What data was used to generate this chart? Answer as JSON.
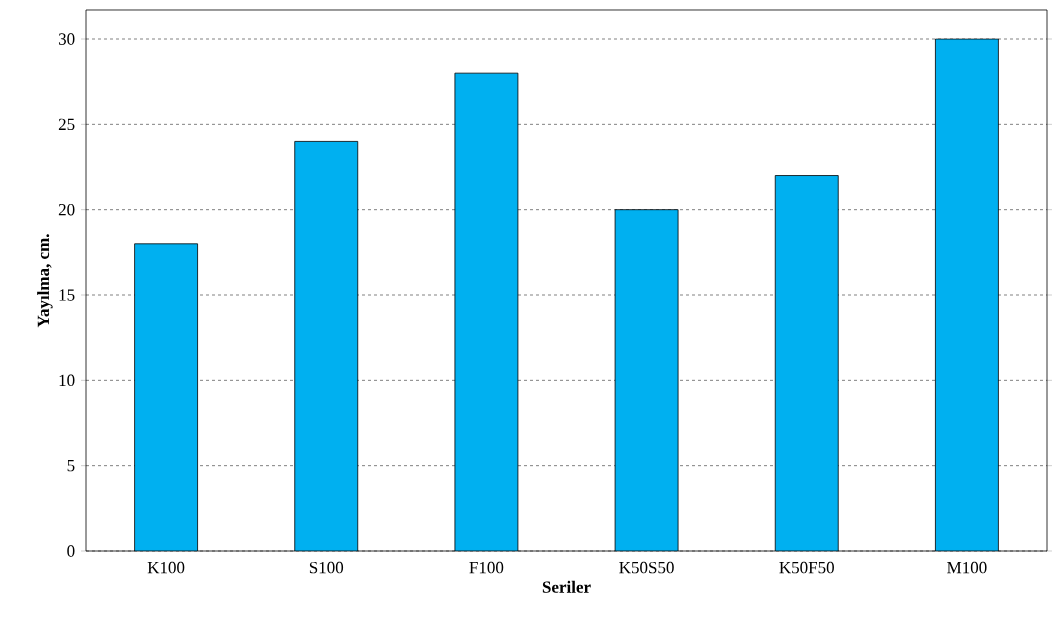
{
  "chart_data": {
    "type": "bar",
    "xlabel": "Seriler",
    "ylabel": "Yayılma, cm.",
    "categories": [
      "K100",
      "S100",
      "F100",
      "K50S50",
      "K50F50",
      "M100"
    ],
    "values": [
      18,
      24,
      28,
      20,
      22,
      30
    ],
    "color": "#00b0f0",
    "ylim": [
      0,
      31.7
    ],
    "yticks": [
      0,
      5,
      10,
      15,
      20,
      25,
      30
    ],
    "grid": "y"
  }
}
